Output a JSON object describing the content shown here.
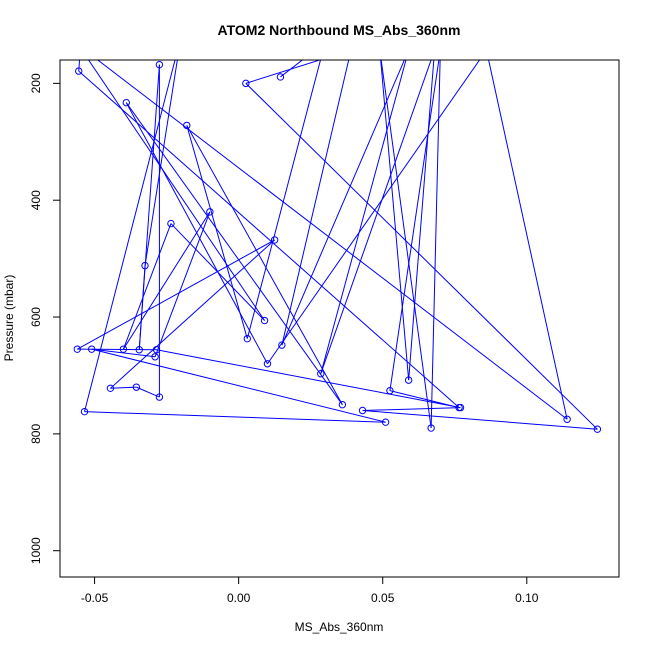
{
  "chart_data": {
    "type": "line",
    "title": "ATOM2 Northbound MS_Abs_360nm",
    "xlabel": "MS_Abs_360nm",
    "ylabel": "Pressure (mbar)",
    "xlim": [
      -0.062,
      0.132
    ],
    "ylim": [
      1045,
      160
    ],
    "y_reversed": true,
    "grid": false,
    "legend": "none",
    "x_ticks": [
      {
        "value": -0.05,
        "label": "-0.05"
      },
      {
        "value": 0.0,
        "label": "0.00"
      },
      {
        "value": 0.05,
        "label": "0.05"
      },
      {
        "value": 0.1,
        "label": "0.10"
      }
    ],
    "y_ticks": [
      {
        "value": 200,
        "label": "200"
      },
      {
        "value": 400,
        "label": "400"
      },
      {
        "value": 600,
        "label": "600"
      },
      {
        "value": 800,
        "label": "800"
      },
      {
        "value": 1000,
        "label": "1000"
      }
    ],
    "series": [
      {
        "color": "#0000ff",
        "marker": "open-circle",
        "points": [
          {
            "x": -0.055,
            "y": 145
          },
          {
            "x": -0.0555,
            "y": 179
          },
          {
            "x": 0.0765,
            "y": 755
          },
          {
            "x": 0.0525,
            "y": 726
          },
          {
            "x": 0.07,
            "y": 143
          },
          {
            "x": 0.0668,
            "y": 790
          },
          {
            "x": 0.049,
            "y": 143
          },
          {
            "x": 0.059,
            "y": 708
          },
          {
            "x": 0.068,
            "y": 143
          },
          {
            "x": 0.0285,
            "y": 697
          },
          {
            "x": 0.059,
            "y": 143
          },
          {
            "x": 0.015,
            "y": 648
          },
          {
            "x": 0.039,
            "y": 143
          },
          {
            "x": 0.0025,
            "y": 200
          },
          {
            "x": 0.1245,
            "y": 792
          },
          {
            "x": 0.043,
            "y": 760
          },
          {
            "x": 0.077,
            "y": 755
          },
          {
            "x": -0.0285,
            "y": 656
          },
          {
            "x": -0.056,
            "y": 655
          },
          {
            "x": 0.0125,
            "y": 468
          },
          {
            "x": -0.0445,
            "y": 722
          },
          {
            "x": -0.0355,
            "y": 720
          },
          {
            "x": -0.0275,
            "y": 737
          },
          {
            "x": -0.0275,
            "y": 168
          },
          {
            "x": -0.0345,
            "y": 656
          },
          {
            "x": -0.0325,
            "y": 512
          },
          {
            "x": -0.02,
            "y": 120
          },
          {
            "x": -0.0535,
            "y": 762
          },
          {
            "x": 0.051,
            "y": 780
          },
          {
            "x": -0.051,
            "y": 655
          },
          {
            "x": -0.029,
            "y": 668
          },
          {
            "x": -0.01,
            "y": 420
          },
          {
            "x": -0.04,
            "y": 655
          },
          {
            "x": -0.0235,
            "y": 440
          },
          {
            "x": 0.009,
            "y": 606
          },
          {
            "x": -0.0555,
            "y": 135
          },
          {
            "x": 0.114,
            "y": 775
          },
          {
            "x": 0.086,
            "y": 143
          },
          {
            "x": 0.01,
            "y": 680
          },
          {
            "x": -0.039,
            "y": 233
          },
          {
            "x": 0.036,
            "y": 750
          },
          {
            "x": -0.018,
            "y": 272
          },
          {
            "x": 0.003,
            "y": 637
          },
          {
            "x": 0.03,
            "y": 130
          },
          {
            "x": 0.0145,
            "y": 189
          }
        ]
      }
    ]
  }
}
